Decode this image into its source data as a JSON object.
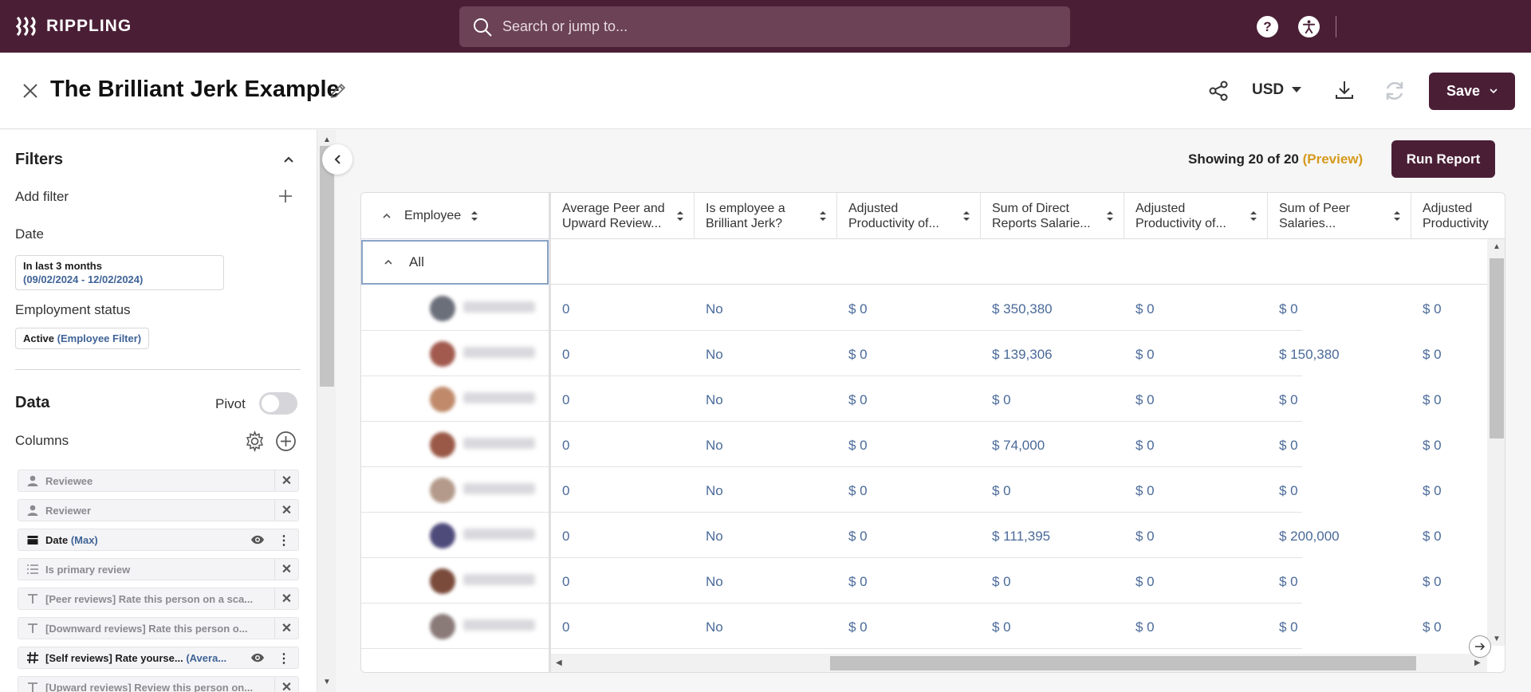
{
  "app": {
    "brand": "RIPPLING"
  },
  "search": {
    "placeholder": "Search or jump to..."
  },
  "topbar": {
    "help_label": "?",
    "accessibility_icon": "accessibility-icon"
  },
  "header": {
    "title": "The Brilliant Jerk Example",
    "currency": "USD",
    "save_label": "Save"
  },
  "sidebar": {
    "filters_title": "Filters",
    "add_filter_label": "Add filter",
    "date_label": "Date",
    "date_chip": {
      "line1": "In last 3 months",
      "line2": "(09/02/2024 - 12/02/2024)"
    },
    "employment_label": "Employment status",
    "employment_chip": {
      "value": "Active",
      "accent": "(Employee Filter)"
    },
    "data_title": "Data",
    "pivot_label": "Pivot",
    "columns_label": "Columns",
    "columns": [
      {
        "label": "Reviewee",
        "accent": "",
        "icon": "person-icon",
        "active": false
      },
      {
        "label": "Reviewer",
        "accent": "",
        "icon": "person-icon",
        "active": false
      },
      {
        "label": "Date",
        "accent": "(Max)",
        "icon": "calendar-icon",
        "active": true
      },
      {
        "label": "Is primary review",
        "accent": "",
        "icon": "list-icon",
        "active": false
      },
      {
        "label": "[Peer reviews] Rate this person on a sca...",
        "accent": "",
        "icon": "text-icon",
        "active": false
      },
      {
        "label": "[Downward reviews] Rate this person o...",
        "accent": "",
        "icon": "text-icon",
        "active": false
      },
      {
        "label": "[Self reviews] Rate yourse...",
        "accent": "(Avera...",
        "icon": "hash-icon",
        "active": true
      },
      {
        "label": "[Upward reviews] Review this person on...",
        "accent": "",
        "icon": "text-icon",
        "active": false
      }
    ]
  },
  "report": {
    "showing_prefix": "Showing 20 of 20",
    "showing_preview": "(Preview)",
    "run_label": "Run Report"
  },
  "table": {
    "employee_header": "Employee",
    "all_label": "All",
    "headers": [
      "Average Peer and Upward Review...",
      "Is employee a Brilliant Jerk?",
      "Adjusted Productivity of...",
      "Sum of Direct Reports Salarie...",
      "Adjusted Productivity of...",
      "Sum of Peer Salaries...",
      "Adjusted Productivity"
    ],
    "rows": [
      [
        "0",
        "No",
        "$ 0",
        "$ 350,380",
        "$ 0",
        "$ 0",
        "$ 0"
      ],
      [
        "0",
        "No",
        "$ 0",
        "$ 139,306",
        "$ 0",
        "$ 150,380",
        "$ 0"
      ],
      [
        "0",
        "No",
        "$ 0",
        "$ 0",
        "$ 0",
        "$ 0",
        "$ 0"
      ],
      [
        "0",
        "No",
        "$ 0",
        "$ 74,000",
        "$ 0",
        "$ 0",
        "$ 0"
      ],
      [
        "0",
        "No",
        "$ 0",
        "$ 0",
        "$ 0",
        "$ 0",
        "$ 0"
      ],
      [
        "0",
        "No",
        "$ 0",
        "$ 111,395",
        "$ 0",
        "$ 200,000",
        "$ 0"
      ],
      [
        "0",
        "No",
        "$ 0",
        "$ 0",
        "$ 0",
        "$ 0",
        "$ 0"
      ],
      [
        "0",
        "No",
        "$ 0",
        "$ 0",
        "$ 0",
        "$ 0",
        "$ 0"
      ]
    ],
    "avatar_colors": [
      "#6b6f7a",
      "#a25a4e",
      "#c08a6a",
      "#9a5846",
      "#b49a8a",
      "#4e4a7a",
      "#7a4a3a",
      "#8a7a78",
      "#b07a5a"
    ]
  },
  "colors": {
    "brand": "#4a1f36",
    "link": "#4a6a99",
    "preview": "#d69a1b"
  }
}
